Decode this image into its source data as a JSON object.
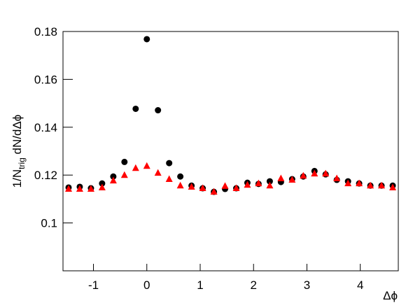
{
  "chart_data": {
    "type": "scatter",
    "y_label": {
      "main": "1/N",
      "sub": "trig",
      "rest": " dN/dΔϕ"
    },
    "x_label": "Δϕ",
    "xlim": [
      -1.5708,
      4.7124
    ],
    "ylim": [
      0.08,
      0.18
    ],
    "xticks": [
      -1,
      0,
      1,
      2,
      3,
      4
    ],
    "yticks": [
      0.1,
      0.12,
      0.14,
      0.16,
      0.18
    ],
    "series": [
      {
        "color": "#000000",
        "marker": "circle",
        "x": [
          -1.466,
          -1.257,
          -1.047,
          -0.838,
          -0.628,
          -0.419,
          -0.209,
          0,
          0.209,
          0.419,
          0.628,
          0.838,
          1.047,
          1.257,
          1.466,
          1.676,
          1.885,
          2.094,
          2.304,
          2.513,
          2.723,
          2.932,
          3.142,
          3.351,
          3.56,
          3.77,
          3.979,
          4.189,
          4.398,
          4.608
        ],
        "values": [
          0.1148,
          0.1151,
          0.1145,
          0.1165,
          0.1194,
          0.1255,
          0.1477,
          0.1768,
          0.1471,
          0.125,
          0.1194,
          0.1156,
          0.1145,
          0.113,
          0.1142,
          0.1145,
          0.1168,
          0.1163,
          0.1174,
          0.1171,
          0.1183,
          0.1194,
          0.1217,
          0.1203,
          0.118,
          0.1174,
          0.1165,
          0.1156,
          0.1156,
          0.1156
        ]
      },
      {
        "color": "#ff0000",
        "marker": "triangle",
        "x": [
          -1.466,
          -1.257,
          -1.047,
          -0.838,
          -0.628,
          -0.419,
          -0.209,
          0,
          0.209,
          0.419,
          0.628,
          0.838,
          1.047,
          1.257,
          1.466,
          1.676,
          1.885,
          2.094,
          2.304,
          2.513,
          2.723,
          2.932,
          3.142,
          3.351,
          3.56,
          3.77,
          3.979,
          4.189,
          4.398,
          4.608
        ],
        "values": [
          0.1142,
          0.1142,
          0.1142,
          0.1148,
          0.1177,
          0.12,
          0.1229,
          0.1238,
          0.1209,
          0.1183,
          0.1156,
          0.1151,
          0.1145,
          0.113,
          0.1154,
          0.1145,
          0.1159,
          0.1165,
          0.1156,
          0.1186,
          0.118,
          0.1197,
          0.1206,
          0.1206,
          0.1186,
          0.1165,
          0.1165,
          0.1156,
          0.1156,
          0.1148
        ]
      }
    ]
  }
}
